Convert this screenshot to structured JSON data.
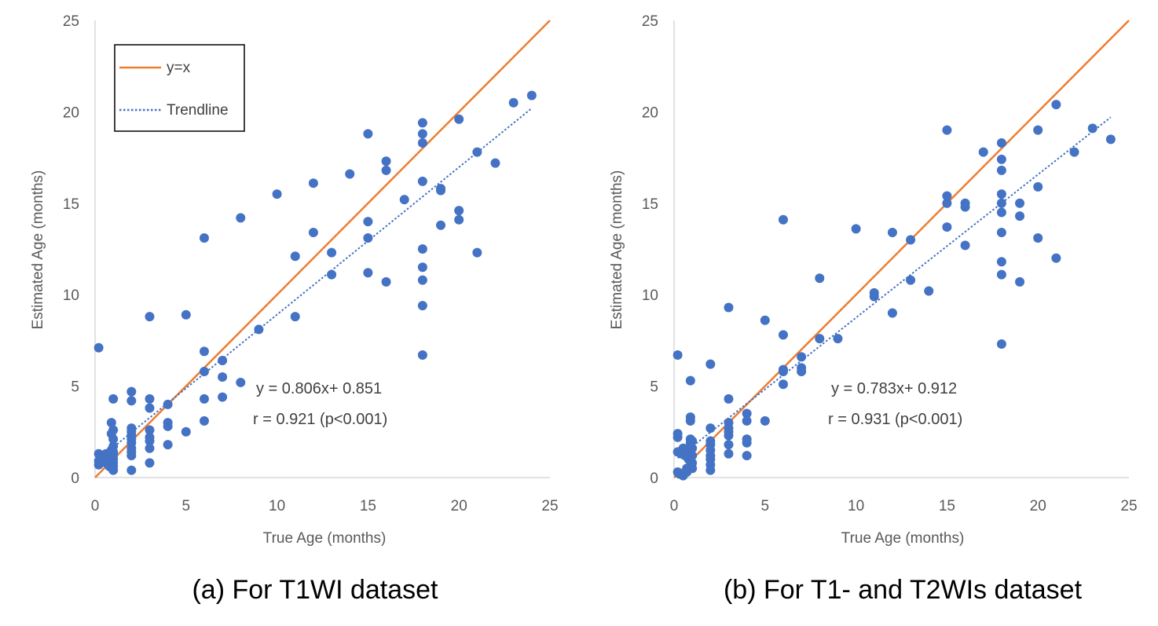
{
  "colors": {
    "points": "#4472C4",
    "identity": "#ED7D31",
    "trendline": "#4472C4",
    "axis": "#D9D9D9",
    "text": "#595959"
  },
  "legend": {
    "items": [
      {
        "label": "y=x",
        "style": "solid"
      },
      {
        "label": "Trendline",
        "style": "dotted"
      }
    ]
  },
  "chart_data": [
    {
      "type": "scatter",
      "title": "",
      "caption": "(a) For T1WI dataset",
      "xlabel": "True Age (months)",
      "ylabel": "Estimated Age (months)",
      "xlim": [
        0,
        25
      ],
      "ylim": [
        0,
        25
      ],
      "xticks": [
        0,
        5,
        10,
        15,
        20,
        25
      ],
      "yticks": [
        0,
        5,
        10,
        15,
        20,
        25
      ],
      "equation": "y = 0.806x+ 0.851",
      "correlation": "r = 0.921 (p<0.001)",
      "trendline": {
        "slope": 0.806,
        "intercept": 0.851,
        "x_range": [
          0.2,
          24
        ]
      },
      "identity_line": {
        "x_range": [
          0,
          25
        ]
      },
      "points": [
        [
          0.2,
          7.1
        ],
        [
          0.2,
          1.3
        ],
        [
          0.2,
          0.9
        ],
        [
          0.2,
          0.7
        ],
        [
          0.4,
          1.2
        ],
        [
          0.4,
          0.9
        ],
        [
          0.5,
          1.1
        ],
        [
          0.6,
          1.3
        ],
        [
          0.6,
          0.8
        ],
        [
          0.7,
          1.0
        ],
        [
          0.8,
          0.6
        ],
        [
          0.9,
          3.0
        ],
        [
          0.9,
          2.4
        ],
        [
          0.9,
          1.5
        ],
        [
          0.9,
          1.0
        ],
        [
          0.9,
          0.6
        ],
        [
          1,
          4.3
        ],
        [
          1,
          2.6
        ],
        [
          1,
          2.1
        ],
        [
          1,
          1.7
        ],
        [
          1,
          1.4
        ],
        [
          1,
          1.2
        ],
        [
          1,
          1.0
        ],
        [
          1,
          0.8
        ],
        [
          1,
          0.6
        ],
        [
          1,
          0.4
        ],
        [
          2,
          4.7
        ],
        [
          2,
          4.2
        ],
        [
          2,
          2.7
        ],
        [
          2,
          2.5
        ],
        [
          2,
          2.3
        ],
        [
          2,
          2.1
        ],
        [
          2,
          1.9
        ],
        [
          2,
          1.6
        ],
        [
          2,
          1.4
        ],
        [
          2,
          1.2
        ],
        [
          2,
          0.4
        ],
        [
          3,
          8.8
        ],
        [
          3,
          4.3
        ],
        [
          3,
          3.8
        ],
        [
          3,
          2.6
        ],
        [
          3,
          2.2
        ],
        [
          3,
          2.0
        ],
        [
          3,
          1.6
        ],
        [
          3,
          0.8
        ],
        [
          4,
          4.0
        ],
        [
          4,
          3.0
        ],
        [
          4,
          2.8
        ],
        [
          4,
          1.8
        ],
        [
          5,
          8.9
        ],
        [
          5,
          2.5
        ],
        [
          6,
          13.1
        ],
        [
          6,
          6.9
        ],
        [
          6,
          5.8
        ],
        [
          6,
          4.3
        ],
        [
          6,
          3.1
        ],
        [
          7,
          6.4
        ],
        [
          7,
          5.5
        ],
        [
          7,
          4.4
        ],
        [
          8,
          14.2
        ],
        [
          8,
          5.2
        ],
        [
          9,
          8.1
        ],
        [
          10,
          15.5
        ],
        [
          11,
          12.1
        ],
        [
          11,
          8.8
        ],
        [
          12,
          16.1
        ],
        [
          12,
          13.4
        ],
        [
          13,
          12.3
        ],
        [
          13,
          11.1
        ],
        [
          14,
          16.6
        ],
        [
          15,
          18.8
        ],
        [
          15,
          14.0
        ],
        [
          15,
          13.1
        ],
        [
          15,
          11.2
        ],
        [
          16,
          17.3
        ],
        [
          16,
          16.8
        ],
        [
          16,
          10.7
        ],
        [
          17,
          15.2
        ],
        [
          18,
          19.4
        ],
        [
          18,
          18.8
        ],
        [
          18,
          18.3
        ],
        [
          18,
          16.2
        ],
        [
          18,
          12.5
        ],
        [
          18,
          11.5
        ],
        [
          18,
          10.8
        ],
        [
          18,
          9.4
        ],
        [
          18,
          6.7
        ],
        [
          19,
          15.8
        ],
        [
          19,
          15.7
        ],
        [
          19,
          13.8
        ],
        [
          20,
          19.6
        ],
        [
          20,
          14.6
        ],
        [
          20,
          14.1
        ],
        [
          21,
          17.8
        ],
        [
          21,
          12.3
        ],
        [
          22,
          17.2
        ],
        [
          23,
          20.5
        ],
        [
          24,
          20.9
        ]
      ]
    },
    {
      "type": "scatter",
      "title": "",
      "caption": "(b) For T1- and T2WIs dataset",
      "xlabel": "True Age (months)",
      "ylabel": "Estimated Age (months)",
      "xlim": [
        0,
        25
      ],
      "ylim": [
        0,
        25
      ],
      "xticks": [
        0,
        5,
        10,
        15,
        20,
        25
      ],
      "yticks": [
        0,
        5,
        10,
        15,
        20,
        25
      ],
      "equation": "y = 0.783x+ 0.912",
      "correlation": "r = 0.931 (p<0.001)",
      "trendline": {
        "slope": 0.783,
        "intercept": 0.912,
        "x_range": [
          0.2,
          24
        ]
      },
      "identity_line": {
        "x_range": [
          0,
          25
        ]
      },
      "points": [
        [
          0.2,
          6.7
        ],
        [
          0.2,
          2.4
        ],
        [
          0.2,
          2.2
        ],
        [
          0.2,
          1.4
        ],
        [
          0.2,
          0.3
        ],
        [
          0.3,
          0.2
        ],
        [
          0.4,
          1.3
        ],
        [
          0.5,
          1.6
        ],
        [
          0.5,
          0.1
        ],
        [
          0.6,
          1.2
        ],
        [
          0.7,
          0.5
        ],
        [
          0.7,
          0.3
        ],
        [
          0.8,
          1.0
        ],
        [
          0.9,
          5.3
        ],
        [
          0.9,
          3.3
        ],
        [
          0.9,
          3.1
        ],
        [
          0.9,
          2.1
        ],
        [
          0.9,
          1.9
        ],
        [
          0.9,
          1.7
        ],
        [
          0.9,
          1.3
        ],
        [
          0.9,
          0.9
        ],
        [
          0.9,
          0.6
        ],
        [
          1,
          2.0
        ],
        [
          1,
          1.6
        ],
        [
          1,
          1.2
        ],
        [
          1,
          0.8
        ],
        [
          1,
          0.5
        ],
        [
          2,
          6.2
        ],
        [
          2,
          2.7
        ],
        [
          2,
          2.0
        ],
        [
          2,
          1.8
        ],
        [
          2,
          1.5
        ],
        [
          2,
          1.2
        ],
        [
          2,
          1.0
        ],
        [
          2,
          0.7
        ],
        [
          2,
          0.4
        ],
        [
          3,
          9.3
        ],
        [
          3,
          4.3
        ],
        [
          3,
          3.0
        ],
        [
          3,
          2.7
        ],
        [
          3,
          2.5
        ],
        [
          3,
          2.3
        ],
        [
          3,
          1.8
        ],
        [
          3,
          1.3
        ],
        [
          4,
          3.5
        ],
        [
          4,
          3.1
        ],
        [
          4,
          2.1
        ],
        [
          4,
          1.9
        ],
        [
          4,
          1.2
        ],
        [
          5,
          8.6
        ],
        [
          5,
          3.1
        ],
        [
          6,
          14.1
        ],
        [
          6,
          7.8
        ],
        [
          6,
          5.9
        ],
        [
          6,
          5.8
        ],
        [
          6,
          5.1
        ],
        [
          7,
          6.6
        ],
        [
          7,
          6.0
        ],
        [
          7,
          5.8
        ],
        [
          8,
          10.9
        ],
        [
          8,
          7.6
        ],
        [
          9,
          7.6
        ],
        [
          10,
          13.6
        ],
        [
          11,
          10.1
        ],
        [
          11,
          9.9
        ],
        [
          12,
          13.4
        ],
        [
          12,
          9.0
        ],
        [
          13,
          13.0
        ],
        [
          13,
          10.8
        ],
        [
          14,
          10.2
        ],
        [
          15,
          19.0
        ],
        [
          15,
          15.4
        ],
        [
          15,
          15.0
        ],
        [
          15,
          13.7
        ],
        [
          16,
          15.0
        ],
        [
          16,
          14.8
        ],
        [
          16,
          12.7
        ],
        [
          17,
          17.8
        ],
        [
          18,
          18.3
        ],
        [
          18,
          17.4
        ],
        [
          18,
          16.8
        ],
        [
          18,
          15.5
        ],
        [
          18,
          15.0
        ],
        [
          18,
          14.5
        ],
        [
          18,
          13.4
        ],
        [
          18,
          11.8
        ],
        [
          18,
          11.1
        ],
        [
          18,
          7.3
        ],
        [
          19,
          15.0
        ],
        [
          19,
          14.3
        ],
        [
          19,
          10.7
        ],
        [
          20,
          19.0
        ],
        [
          20,
          15.9
        ],
        [
          20,
          13.1
        ],
        [
          21,
          20.4
        ],
        [
          21,
          12.0
        ],
        [
          22,
          17.8
        ],
        [
          23,
          19.1
        ],
        [
          24,
          18.5
        ]
      ]
    }
  ]
}
